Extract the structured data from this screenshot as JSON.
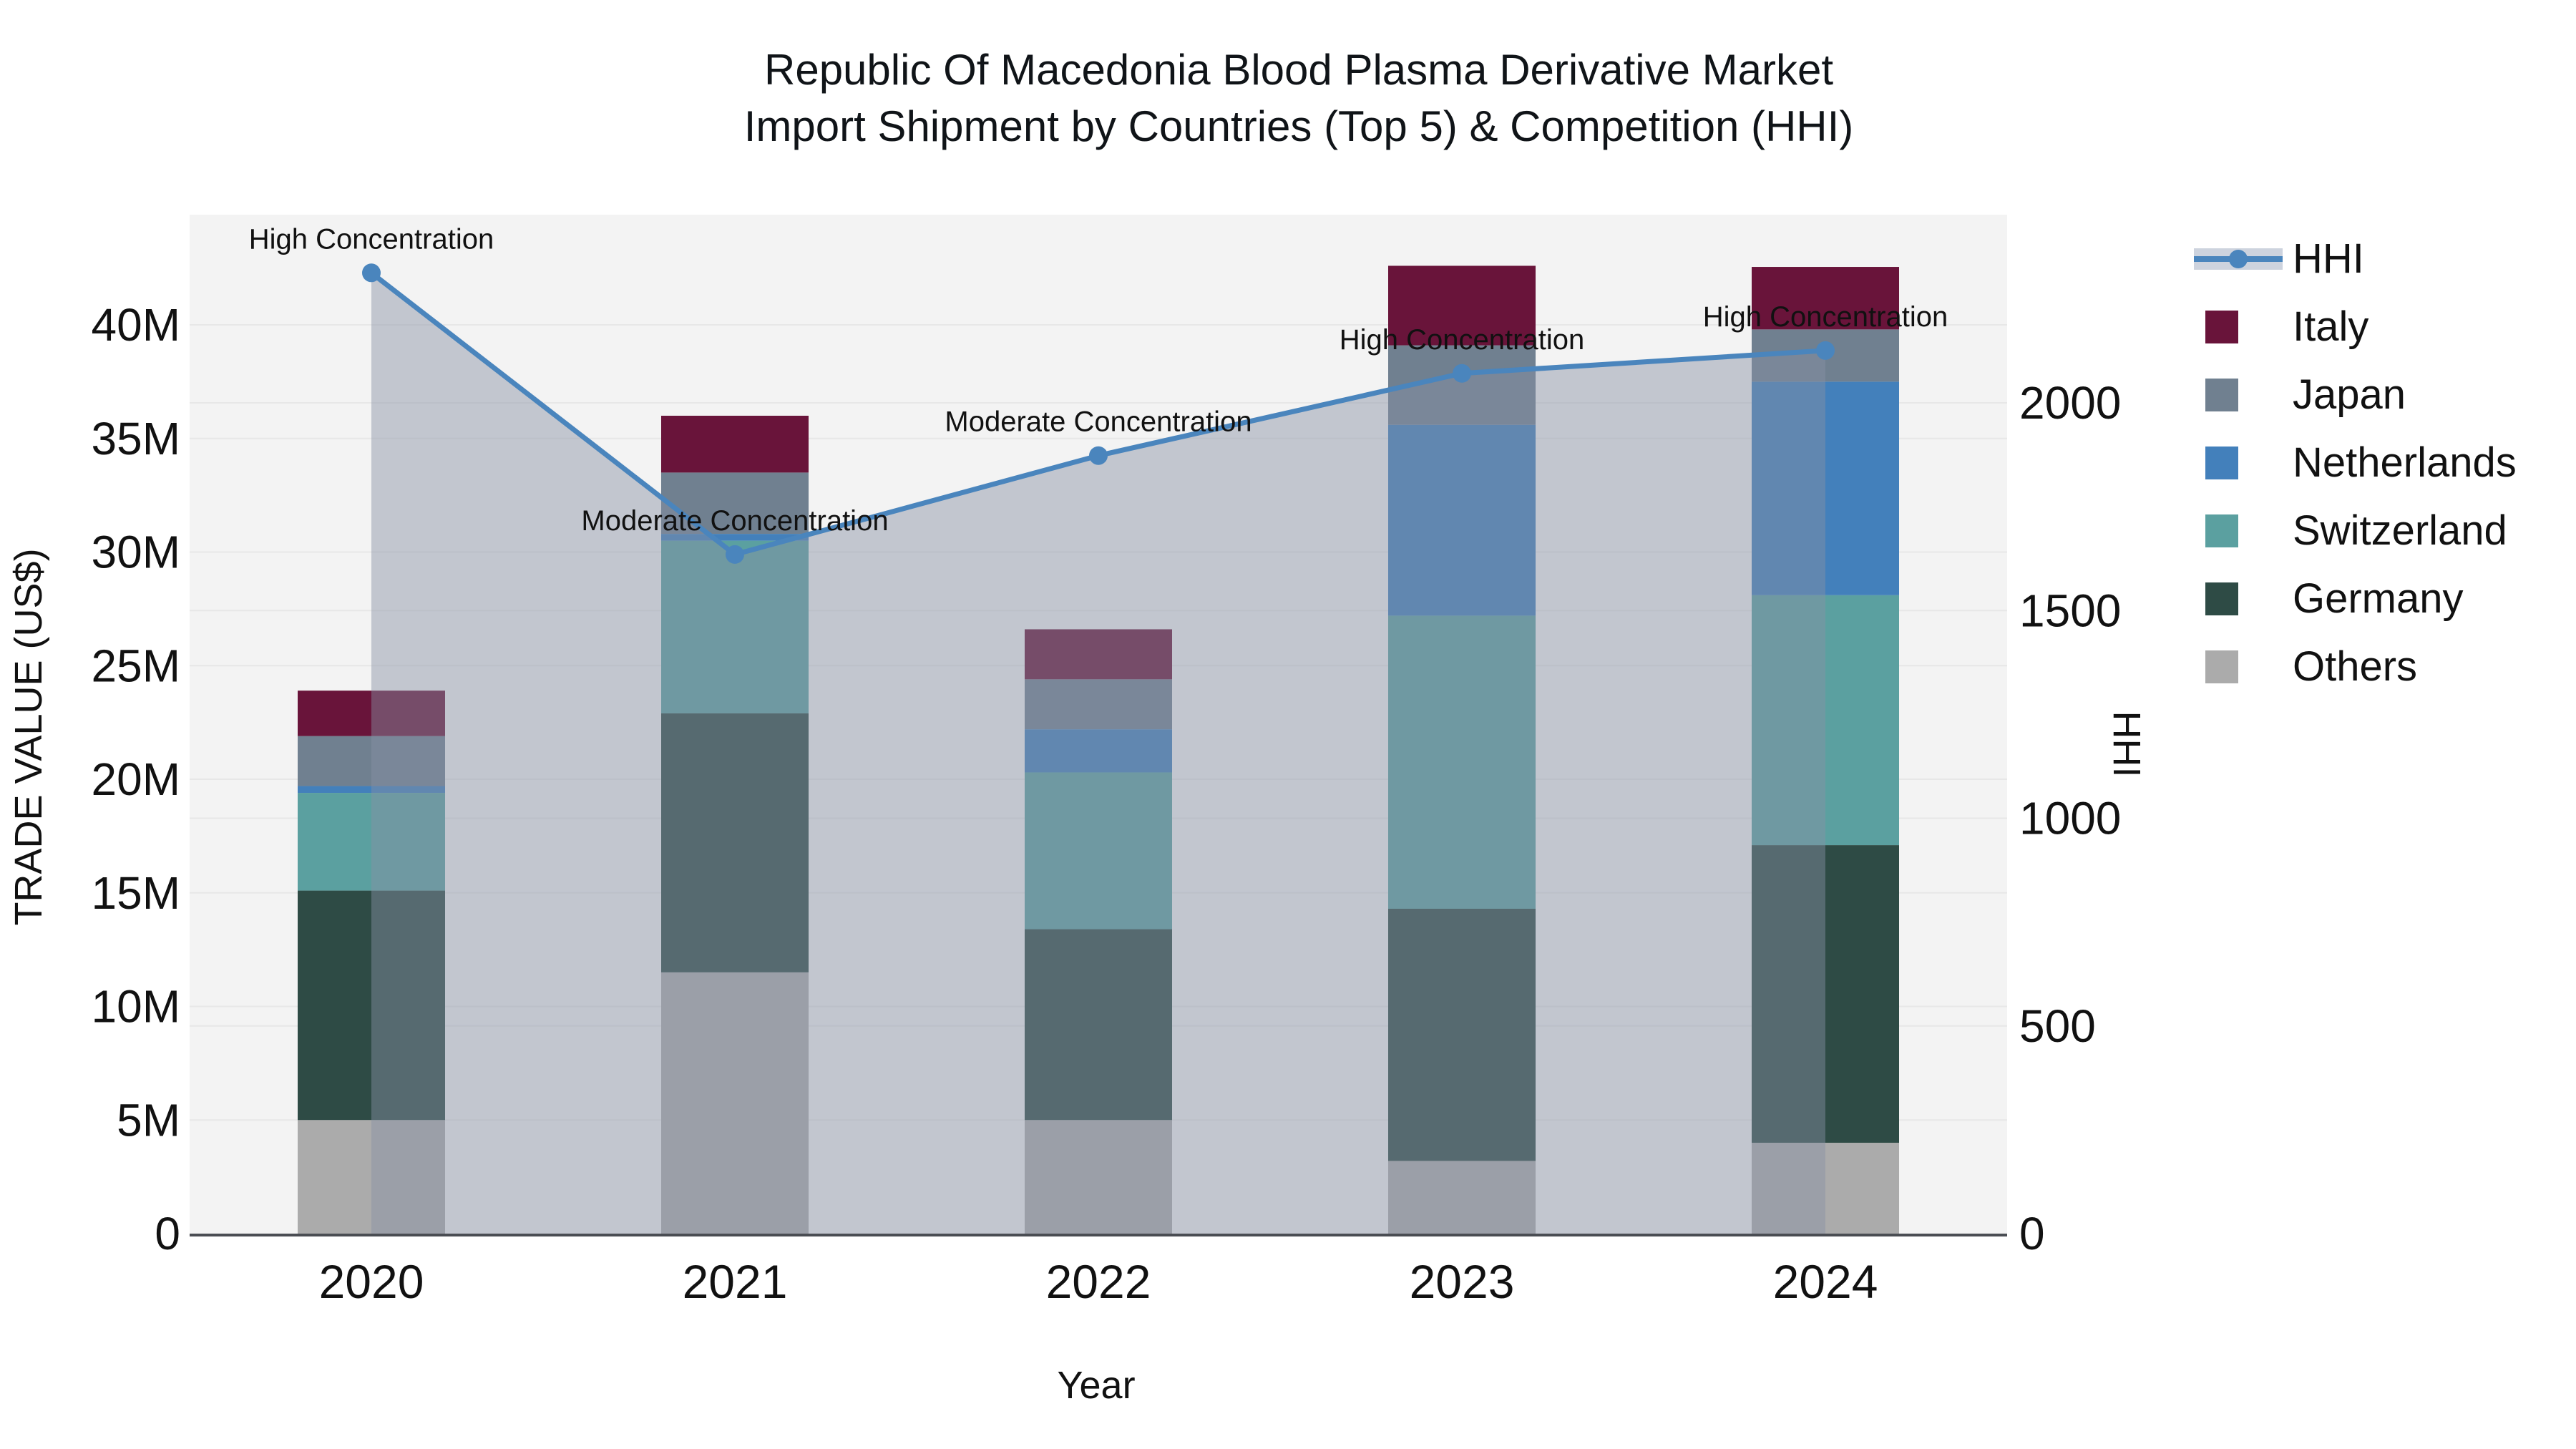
{
  "title": {
    "line1": "Republic Of Macedonia Blood Plasma Derivative Market",
    "line2": "Import Shipment by Countries (Top 5) & Competition (HHI)"
  },
  "chart_data": {
    "type": "bar",
    "subtype": "stacked-bars-with-hhi-line-overlay",
    "title": "Republic Of Macedonia Blood Plasma Derivative Market Import Shipment by Countries (Top 5) & Competition (HHI)",
    "categories": [
      "2020",
      "2021",
      "2022",
      "2023",
      "2024"
    ],
    "unit": "M US$",
    "series": [
      {
        "name": "Others",
        "color": "#ababab",
        "values": [
          5.0,
          11.5,
          5.0,
          3.2,
          4.0
        ]
      },
      {
        "name": "Germany",
        "color": "#2e4b45",
        "values": [
          10.1,
          11.4,
          8.4,
          11.1,
          13.1
        ]
      },
      {
        "name": "Switzerland",
        "color": "#5ba0a0",
        "values": [
          4.3,
          7.6,
          6.9,
          12.9,
          11.0
        ]
      },
      {
        "name": "Netherlands",
        "color": "#4380bb",
        "values": [
          0.3,
          0.3,
          1.9,
          8.4,
          9.4
        ]
      },
      {
        "name": "Japan",
        "color": "#708090",
        "values": [
          2.2,
          2.7,
          2.2,
          3.5,
          2.3
        ]
      },
      {
        "name": "Italy",
        "color": "#69143a",
        "values": [
          2.0,
          2.5,
          2.2,
          3.5,
          2.75
        ]
      }
    ],
    "bar_totals": [
      23.9,
      36.0,
      26.6,
      42.6,
      42.55
    ],
    "line_series": {
      "name": "HHI",
      "axis": "right",
      "color": "#4a85bd",
      "area_fill": "rgba(135,145,165,0.45)",
      "values": [
        2313,
        1635,
        1873,
        2071,
        2126
      ]
    },
    "annotations": [
      {
        "category": "2020",
        "text": "High Concentration"
      },
      {
        "category": "2021",
        "text": "Moderate Concentration"
      },
      {
        "category": "2022",
        "text": "Moderate Concentration"
      },
      {
        "category": "2023",
        "text": "High Concentration"
      },
      {
        "category": "2024",
        "text": "High Concentration"
      }
    ],
    "xlabel": "Year",
    "ylabel": "TRADE VALUE (US$)",
    "y2label": "HHI",
    "ytick_values": [
      0,
      5,
      10,
      15,
      20,
      25,
      30,
      35,
      40
    ],
    "ytick_labels": [
      "0",
      "5M",
      "10M",
      "15M",
      "20M",
      "25M",
      "30M",
      "35M",
      "40M"
    ],
    "y2tick_values": [
      0,
      500,
      1000,
      1500,
      2000
    ],
    "y2tick_labels": [
      "0",
      "500",
      "1000",
      "1500",
      "2000"
    ],
    "ylim": [
      0,
      44.9
    ],
    "y2lim": [
      0,
      2453
    ],
    "grid": true,
    "legend_position": "right",
    "plot_background": "#f3f3f3",
    "gridline_color": "#e7e7e7",
    "axisline_color": "#4a4d53"
  },
  "legend": {
    "items": [
      {
        "label": "HHI",
        "type": "line",
        "color": "#4a85bd",
        "band_color": "#cdd3de"
      },
      {
        "label": "Italy",
        "type": "swatch",
        "color": "#69143a"
      },
      {
        "label": "Japan",
        "type": "swatch",
        "color": "#708090"
      },
      {
        "label": "Netherlands",
        "type": "swatch",
        "color": "#4380bb"
      },
      {
        "label": "Switzerland",
        "type": "swatch",
        "color": "#5ba0a0"
      },
      {
        "label": "Germany",
        "type": "swatch",
        "color": "#2e4b45"
      },
      {
        "label": "Others",
        "type": "swatch",
        "color": "#ababab"
      }
    ]
  }
}
